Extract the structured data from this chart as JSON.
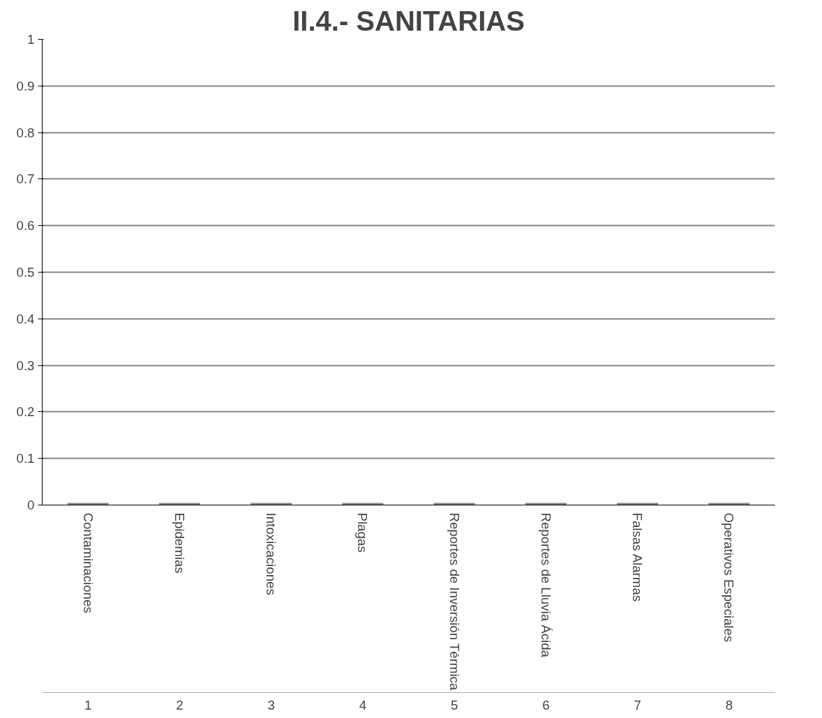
{
  "chart_data": {
    "type": "bar",
    "title": "II.4.- SANITARIAS",
    "categories": [
      "Contaminaciones",
      "Epidemias",
      "Intoxicaciones",
      "Plagas",
      "Reportes de Inversión Térmica",
      "Reportes de Lluvia Ácida",
      "Falsas Alarmas",
      "Operativos Especiales"
    ],
    "values": [
      0,
      0,
      0,
      0,
      0,
      0,
      0,
      0
    ],
    "color": "#808080",
    "ylim": [
      0,
      1
    ],
    "yticks": [
      0,
      0.1,
      0.2,
      0.3,
      0.4,
      0.5,
      0.6,
      0.7,
      0.8,
      0.9,
      1
    ],
    "grid": "y",
    "annotations": [
      "1",
      "2",
      "3",
      "4",
      "5",
      "6",
      "7",
      "8"
    ]
  }
}
